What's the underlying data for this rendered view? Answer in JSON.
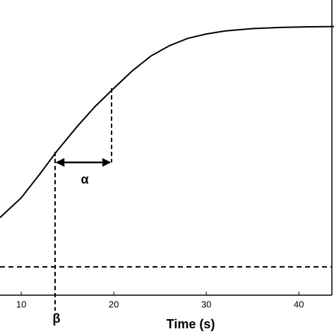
{
  "chart_data": {
    "type": "line",
    "x_label": "Time (s)",
    "x": [
      7.7,
      10,
      12,
      13.8,
      16,
      18,
      20,
      22,
      24,
      26,
      28,
      30,
      32,
      35,
      38,
      41,
      43.8
    ],
    "series": [
      {
        "color": "#000000",
        "values": [
          0.263,
          0.33,
          0.41,
          0.486,
          0.57,
          0.64,
          0.701,
          0.76,
          0.81,
          0.845,
          0.87,
          0.885,
          0.895,
          0.903,
          0.907,
          0.909,
          0.91
        ]
      }
    ],
    "reference_line": 0.096,
    "annotations": [
      "α",
      "β"
    ],
    "xlim": [
      7.7,
      43.8
    ],
    "ylim": [
      0,
      1
    ],
    "xticks": [
      10,
      20,
      30,
      40
    ]
  }
}
